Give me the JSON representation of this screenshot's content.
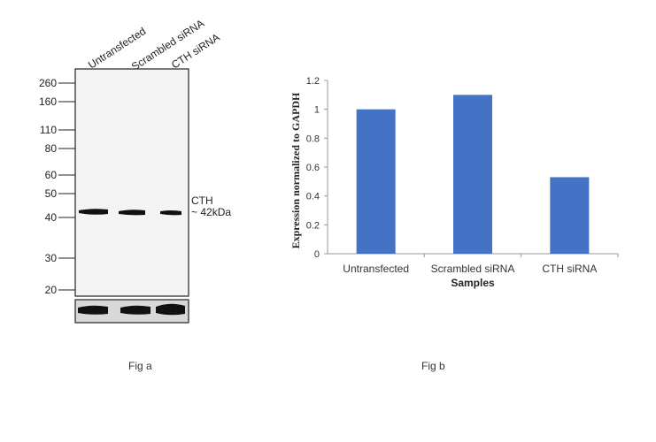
{
  "fig_a": {
    "lanes": [
      "Untransfected",
      "Scrambled siRNA",
      "CTH siRNA"
    ],
    "markers": [
      "260",
      "160",
      "110",
      "80",
      "60",
      "50",
      "40",
      "30",
      "20"
    ],
    "band_label": "CTH",
    "band_size": "~ 42kDa",
    "caption": "Fig a"
  },
  "fig_b": {
    "caption": "Fig b"
  },
  "chart_data": {
    "type": "bar",
    "categories": [
      "Untransfected",
      "Scrambled siRNA",
      "CTH siRNA"
    ],
    "values": [
      1.0,
      1.1,
      0.53
    ],
    "title": "",
    "xlabel": "Samples",
    "ylabel": "Expression normalized to GAPDH",
    "ylim": [
      0,
      1.2
    ],
    "yticks": [
      "0",
      "0.2",
      "0.4",
      "0.6",
      "0.8",
      "1",
      "1.2"
    ],
    "grid": false,
    "bar_color": "#4472c4"
  }
}
